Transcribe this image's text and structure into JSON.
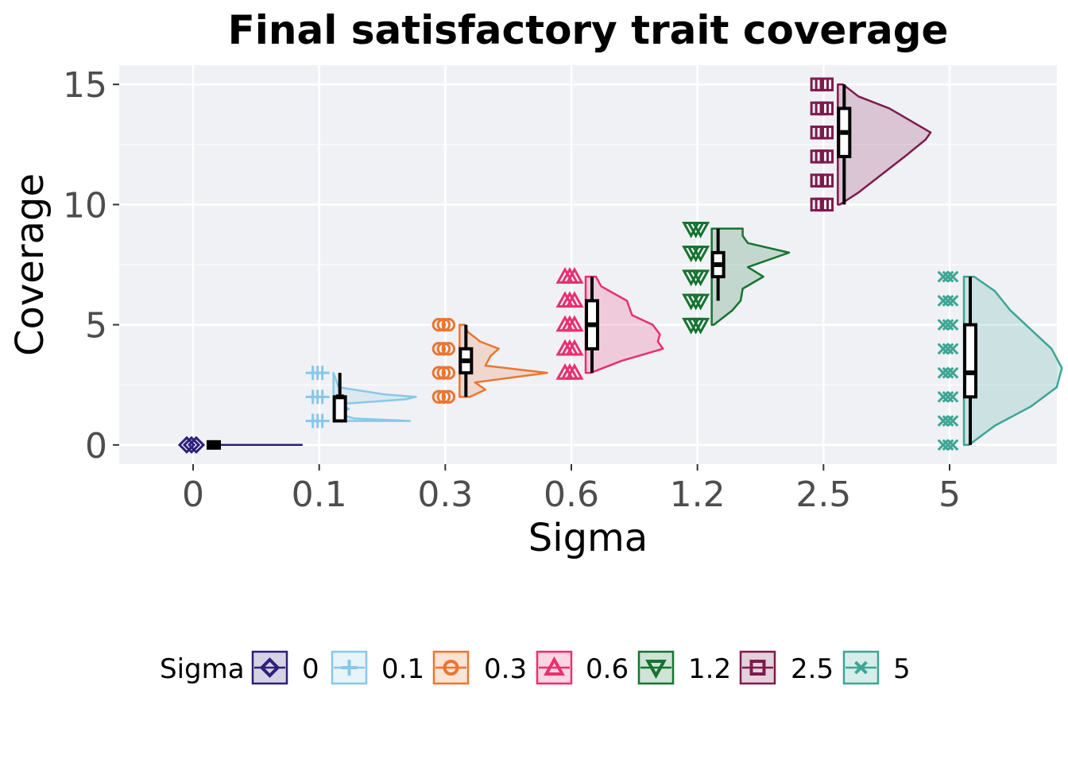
{
  "chart_data": {
    "type": "raincloud",
    "title": "Final satisfactory trait coverage",
    "xlabel": "Sigma",
    "ylabel": "Coverage",
    "categories": [
      "0",
      "0.1",
      "0.3",
      "0.6",
      "1.2",
      "2.5",
      "5"
    ],
    "ylim": [
      -0.8,
      15.8
    ],
    "yticks": [
      0,
      5,
      10,
      15
    ],
    "grid": true,
    "legend": {
      "title": "Sigma",
      "position": "bottom"
    },
    "series": [
      {
        "name": "0",
        "color": "#2e1f7c",
        "shape": "diamond",
        "points": [
          0
        ],
        "box": {
          "min": 0,
          "q1": 0,
          "median": 0,
          "q3": 0,
          "max": 0
        },
        "density": [
          [
            0,
            1.0
          ]
        ]
      },
      {
        "name": "0.1",
        "color": "#88c8e8",
        "shape": "plus",
        "points": [
          1,
          2,
          3
        ],
        "box": {
          "min": 1,
          "q1": 1,
          "median": 2,
          "q3": 2,
          "max": 3
        },
        "density": [
          [
            1,
            0.74
          ],
          [
            1.1,
            0.2
          ],
          [
            1.3,
            0.05
          ],
          [
            1.5,
            0.15
          ],
          [
            1.7,
            0.06
          ],
          [
            1.9,
            0.7
          ],
          [
            2,
            0.8
          ],
          [
            2.1,
            0.5
          ],
          [
            2.4,
            0.05
          ],
          [
            3,
            0.0
          ]
        ]
      },
      {
        "name": "0.3",
        "color": "#ec7530",
        "shape": "circle",
        "points": [
          2,
          3,
          4,
          5
        ],
        "box": {
          "min": 2,
          "q1": 3,
          "median": 3.5,
          "q3": 4,
          "max": 5
        },
        "density": [
          [
            2,
            0.1
          ],
          [
            2.3,
            0.25
          ],
          [
            2.6,
            0.15
          ],
          [
            3,
            0.85
          ],
          [
            3.3,
            0.25
          ],
          [
            3.7,
            0.3
          ],
          [
            4,
            0.38
          ],
          [
            4.3,
            0.2
          ],
          [
            4.7,
            0.08
          ],
          [
            5,
            0.05
          ]
        ]
      },
      {
        "name": "0.6",
        "color": "#e8306f",
        "shape": "triangle",
        "points": [
          3,
          4,
          5,
          6,
          7
        ],
        "box": {
          "min": 3,
          "q1": 4,
          "median": 5,
          "q3": 6,
          "max": 7
        },
        "density": [
          [
            3,
            0.05
          ],
          [
            3.5,
            0.35
          ],
          [
            4,
            0.75
          ],
          [
            4.3,
            0.7
          ],
          [
            4.6,
            0.72
          ],
          [
            5,
            0.65
          ],
          [
            5.4,
            0.45
          ],
          [
            6,
            0.4
          ],
          [
            6.6,
            0.15
          ],
          [
            7,
            0.1
          ]
        ]
      },
      {
        "name": "1.2",
        "color": "#157430",
        "shape": "triangle-down",
        "points": [
          5,
          6,
          7,
          8,
          9
        ],
        "box": {
          "min": 6,
          "q1": 7,
          "median": 7.5,
          "q3": 8,
          "max": 9
        },
        "density": [
          [
            5,
            0.02
          ],
          [
            5.6,
            0.2
          ],
          [
            6,
            0.28
          ],
          [
            6.5,
            0.3
          ],
          [
            7,
            0.5
          ],
          [
            7.4,
            0.35
          ],
          [
            8,
            0.75
          ],
          [
            8.4,
            0.35
          ],
          [
            8.7,
            0.3
          ],
          [
            9,
            0.3
          ]
        ]
      },
      {
        "name": "2.5",
        "color": "#7e1a4d",
        "shape": "square",
        "points": [
          10,
          11,
          12,
          13,
          14,
          15
        ],
        "box": {
          "min": 10,
          "q1": 12,
          "median": 13,
          "q3": 14,
          "max": 15
        },
        "density": [
          [
            10,
            0.02
          ],
          [
            10.5,
            0.2
          ],
          [
            11,
            0.35
          ],
          [
            12,
            0.65
          ],
          [
            12.7,
            0.85
          ],
          [
            13,
            0.9
          ],
          [
            13.5,
            0.7
          ],
          [
            14,
            0.5
          ],
          [
            14.5,
            0.2
          ],
          [
            15,
            0.05
          ]
        ]
      },
      {
        "name": "5",
        "color": "#3da594",
        "shape": "x",
        "points": [
          0,
          1,
          2,
          3,
          4,
          5,
          6,
          7
        ],
        "box": {
          "min": 0,
          "q1": 2,
          "median": 3,
          "q3": 5,
          "max": 7
        },
        "density": [
          [
            0,
            0.05
          ],
          [
            0.8,
            0.3
          ],
          [
            1.6,
            0.65
          ],
          [
            2.4,
            0.9
          ],
          [
            3.2,
            0.95
          ],
          [
            4.0,
            0.85
          ],
          [
            4.8,
            0.65
          ],
          [
            5.6,
            0.45
          ],
          [
            6.4,
            0.3
          ],
          [
            7,
            0.1
          ]
        ]
      }
    ]
  }
}
